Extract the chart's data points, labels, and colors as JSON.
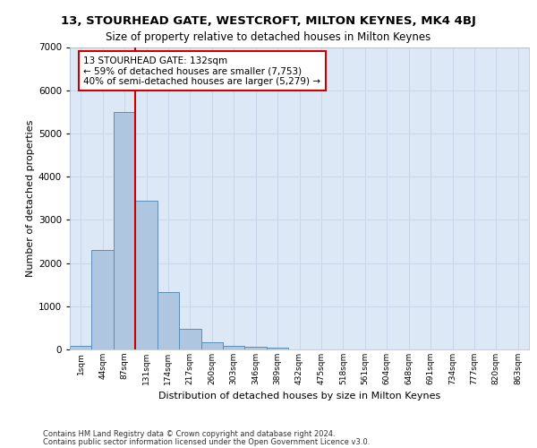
{
  "title1": "13, STOURHEAD GATE, WESTCROFT, MILTON KEYNES, MK4 4BJ",
  "title2": "Size of property relative to detached houses in Milton Keynes",
  "xlabel": "Distribution of detached houses by size in Milton Keynes",
  "ylabel": "Number of detached properties",
  "footer1": "Contains HM Land Registry data © Crown copyright and database right 2024.",
  "footer2": "Contains public sector information licensed under the Open Government Licence v3.0.",
  "bar_labels": [
    "1sqm",
    "44sqm",
    "87sqm",
    "131sqm",
    "174sqm",
    "217sqm",
    "260sqm",
    "303sqm",
    "346sqm",
    "389sqm",
    "432sqm",
    "475sqm",
    "518sqm",
    "561sqm",
    "604sqm",
    "648sqm",
    "691sqm",
    "734sqm",
    "777sqm",
    "820sqm",
    "863sqm"
  ],
  "bar_values": [
    80,
    2300,
    5500,
    3450,
    1320,
    480,
    160,
    90,
    65,
    40,
    0,
    0,
    0,
    0,
    0,
    0,
    0,
    0,
    0,
    0,
    0
  ],
  "bar_color": "#aec6df",
  "bar_edge_color": "#5b8db8",
  "grid_color": "#c8d8ea",
  "background_color": "#dce8f5",
  "vline_color": "#cc0000",
  "annotation_text": "13 STOURHEAD GATE: 132sqm\n← 59% of detached houses are smaller (7,753)\n40% of semi-detached houses are larger (5,279) →",
  "annotation_box_color": "#ffffff",
  "annotation_box_edge": "#cc0000",
  "ylim": [
    0,
    7000
  ],
  "yticks": [
    0,
    1000,
    2000,
    3000,
    4000,
    5000,
    6000,
    7000
  ]
}
